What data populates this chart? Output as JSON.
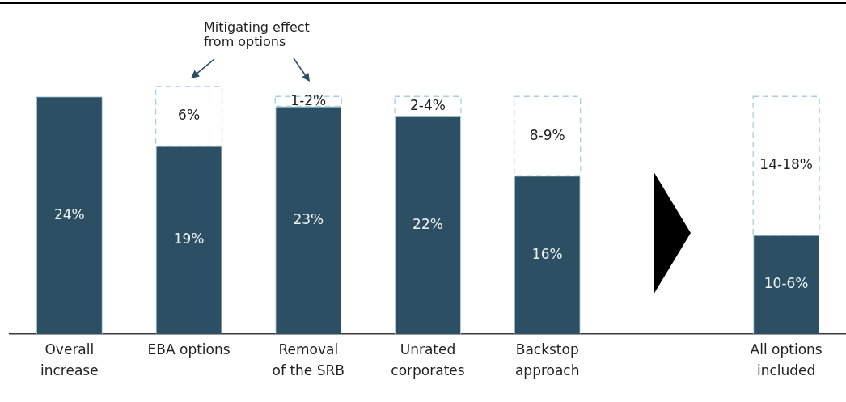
{
  "chart_data": {
    "type": "bar",
    "stacked": true,
    "tick_labels": "x",
    "categories": [
      "Overall\nincrease",
      "EBA options",
      "Removal\nof the SRB",
      "Unrated\ncorporates",
      "Backstop\napproach",
      null,
      "All options\nincluded"
    ],
    "series": [
      {
        "color": "#2c4f63",
        "values": [
          24,
          19,
          23,
          22,
          16,
          null,
          10
        ],
        "value_labels": [
          "24%",
          "19%",
          "23%",
          "22%",
          "16%",
          null,
          "10-6%"
        ]
      },
      {
        "color": "#a8cfdf",
        "line_style": "dashed",
        "values": [
          null,
          6,
          1,
          2,
          8,
          null,
          14
        ],
        "value_labels": [
          null,
          "6%",
          "1-2%",
          "2-4%",
          "8-9%",
          null,
          "14-18%"
        ]
      }
    ],
    "annotations": [
      "Mitigating effect from options"
    ]
  }
}
